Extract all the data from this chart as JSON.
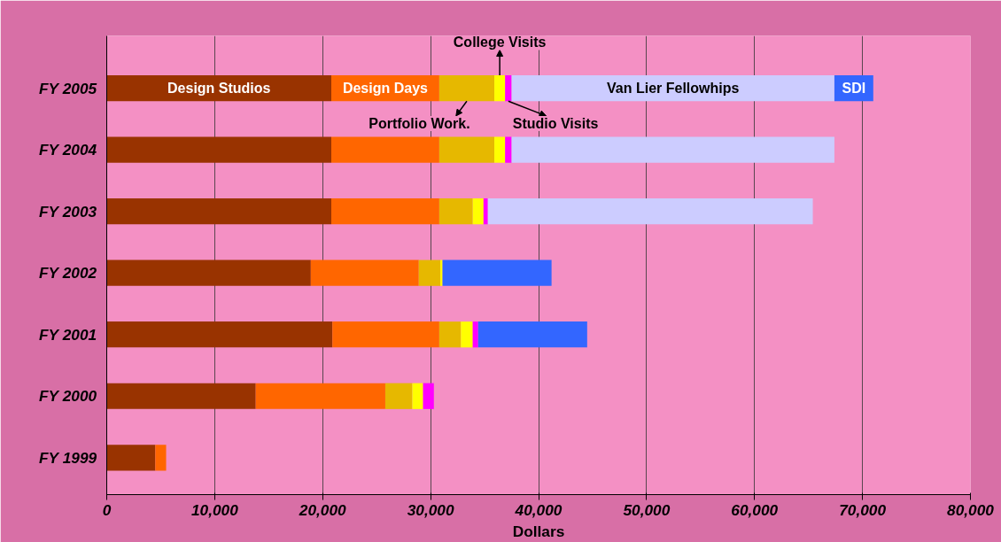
{
  "chart_data": {
    "type": "bar",
    "orientation": "horizontal",
    "stacked": true,
    "categories": [
      "FY 2005",
      "FY 2004",
      "FY 2003",
      "FY 2002",
      "FY 2001",
      "FY 2000",
      "FY 1999"
    ],
    "series": [
      {
        "name": "Design Studios",
        "color": "#993300",
        "values": [
          20800,
          20800,
          20800,
          18900,
          20900,
          13800,
          4500
        ]
      },
      {
        "name": "Design Days",
        "color": "#ff6600",
        "values": [
          10000,
          10000,
          10000,
          10000,
          9900,
          12000,
          1000
        ]
      },
      {
        "name": "Portfolio Work.",
        "color": "#e6b800",
        "values": [
          5100,
          5100,
          3100,
          2000,
          2000,
          2500,
          null
        ]
      },
      {
        "name": "College Visits",
        "color": "#ffff00",
        "values": [
          1000,
          1000,
          1000,
          200,
          1100,
          1000,
          null
        ]
      },
      {
        "name": "Studio Visits",
        "color": "#ff00ff",
        "values": [
          600,
          600,
          400,
          null,
          500,
          1000,
          null
        ]
      },
      {
        "name": "Van Lier Fellowhips",
        "color": "#ccccff",
        "values": [
          29900,
          29900,
          30100,
          null,
          null,
          null,
          null
        ]
      },
      {
        "name": "SDI",
        "color": "#3366ff",
        "values": [
          3600,
          null,
          null,
          10100,
          10100,
          null,
          null
        ]
      }
    ],
    "xlabel": "Dollars",
    "xlim": [
      0,
      80000
    ],
    "xticks": [
      {
        "value": 0,
        "label": "0"
      },
      {
        "value": 10000,
        "label": "10,000"
      },
      {
        "value": 20000,
        "label": "20,000"
      },
      {
        "value": 30000,
        "label": "30,000"
      },
      {
        "value": 40000,
        "label": "40,000"
      },
      {
        "value": 50000,
        "label": "50,000"
      },
      {
        "value": 60000,
        "label": "60,000"
      },
      {
        "value": 70000,
        "label": "70,000"
      },
      {
        "value": 80000,
        "label": "80,000"
      }
    ],
    "grid": "x"
  }
}
